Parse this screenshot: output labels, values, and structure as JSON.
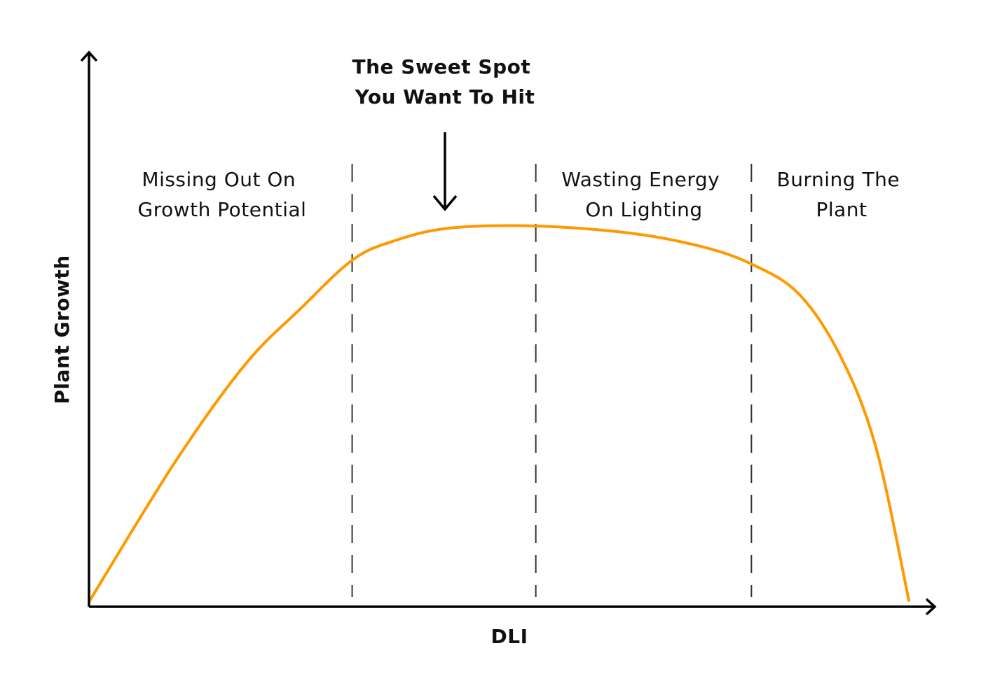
{
  "chart_data": {
    "type": "line",
    "title": "",
    "xlabel": "DLI",
    "ylabel": "Plant Growth",
    "xlim": [
      0,
      100
    ],
    "ylim": [
      0,
      100
    ],
    "grid": false,
    "color": "#FF9900",
    "series": [
      {
        "x": [
          0,
          10.5,
          19.1,
          25.9,
          32.1,
          37.0,
          43.8,
          54.5,
          66.1,
          74.6,
          80.8,
          86.6,
          91.7,
          96.0,
          100
        ],
        "y": [
          0,
          37.2,
          63.3,
          78.2,
          90.9,
          95.9,
          99.4,
          100,
          98.1,
          94.6,
          89.9,
          81.9,
          65.2,
          41.0,
          0.4
        ]
      }
    ],
    "zone_boundaries": [
      32.1,
      54.5,
      80.8
    ],
    "zones": [
      {
        "lines": [
          "Missing Out On",
          "Growth Potential"
        ]
      },
      {
        "lines": [
          "Wasting Energy",
          "On Lighting"
        ]
      },
      {
        "lines": [
          "Burning The",
          "Plant"
        ]
      }
    ],
    "annotation": {
      "lines": [
        "The Sweet Spot",
        "You Want To Hit"
      ]
    }
  }
}
